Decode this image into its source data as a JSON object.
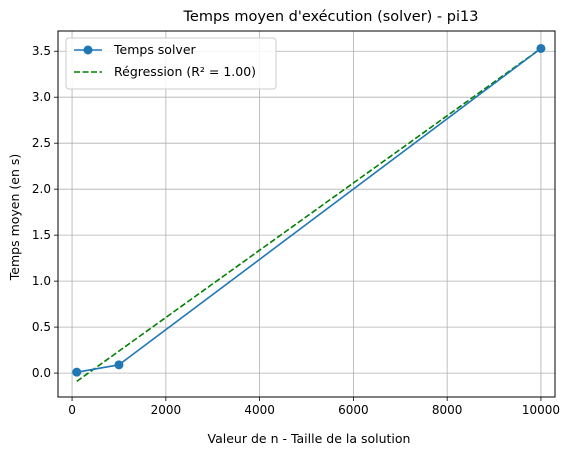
{
  "chart_data": {
    "type": "line",
    "title": "Temps moyen d'exécution (solver) - pi13",
    "xlabel": "Valeur de n - Taille de la solution",
    "ylabel": "Temps moyen (en s)",
    "xlim": [
      -300,
      10300
    ],
    "ylim": [
      -0.26,
      3.72
    ],
    "xticks": [
      0,
      2000,
      4000,
      6000,
      8000,
      10000
    ],
    "xtick_labels": [
      "0",
      "2000",
      "4000",
      "6000",
      "8000",
      "10000"
    ],
    "yticks": [
      0.0,
      0.5,
      1.0,
      1.5,
      2.0,
      2.5,
      3.0,
      3.5
    ],
    "ytick_labels": [
      "0.0",
      "0.5",
      "1.0",
      "1.5",
      "2.0",
      "2.5",
      "3.0",
      "3.5"
    ],
    "grid": true,
    "legend_position": "top-left",
    "series": [
      {
        "name": "Temps solver",
        "style": "solid-line-circle-markers",
        "color": "#1f77b4",
        "x": [
          100,
          1000,
          10000
        ],
        "y": [
          0.01,
          0.09,
          3.53
        ]
      },
      {
        "name": "Régression (R² = 1.00)",
        "style": "dashed-line",
        "color": "#008000",
        "x": [
          100,
          10000
        ],
        "y": [
          -0.09,
          3.53
        ]
      }
    ]
  }
}
